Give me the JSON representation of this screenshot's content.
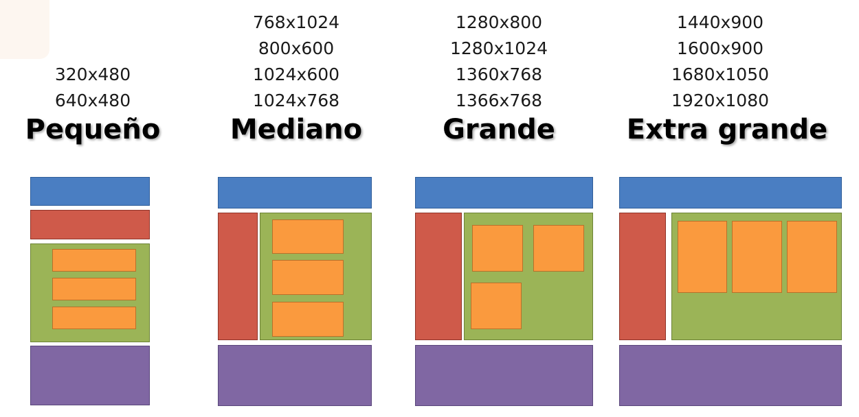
{
  "columns": [
    {
      "title": "Pequeño",
      "resolutions": [
        "320x480",
        "640x480"
      ]
    },
    {
      "title": "Mediano",
      "resolutions": [
        "768x1024",
        "800x600",
        "1024x600",
        "1024x768"
      ]
    },
    {
      "title": "Grande",
      "resolutions": [
        "1280x800",
        "1280x1024",
        "1360x768",
        "1366x768"
      ]
    },
    {
      "title": "Extra grande",
      "resolutions": [
        "1440x900",
        "1600x900",
        "1680x1050",
        "1920x1080"
      ]
    }
  ],
  "colors": {
    "header": "#4a7ec2",
    "sidebar": "#cf5a4a",
    "content": "#9bb457",
    "item": "#fa9a3e",
    "footer": "#8067a3"
  }
}
